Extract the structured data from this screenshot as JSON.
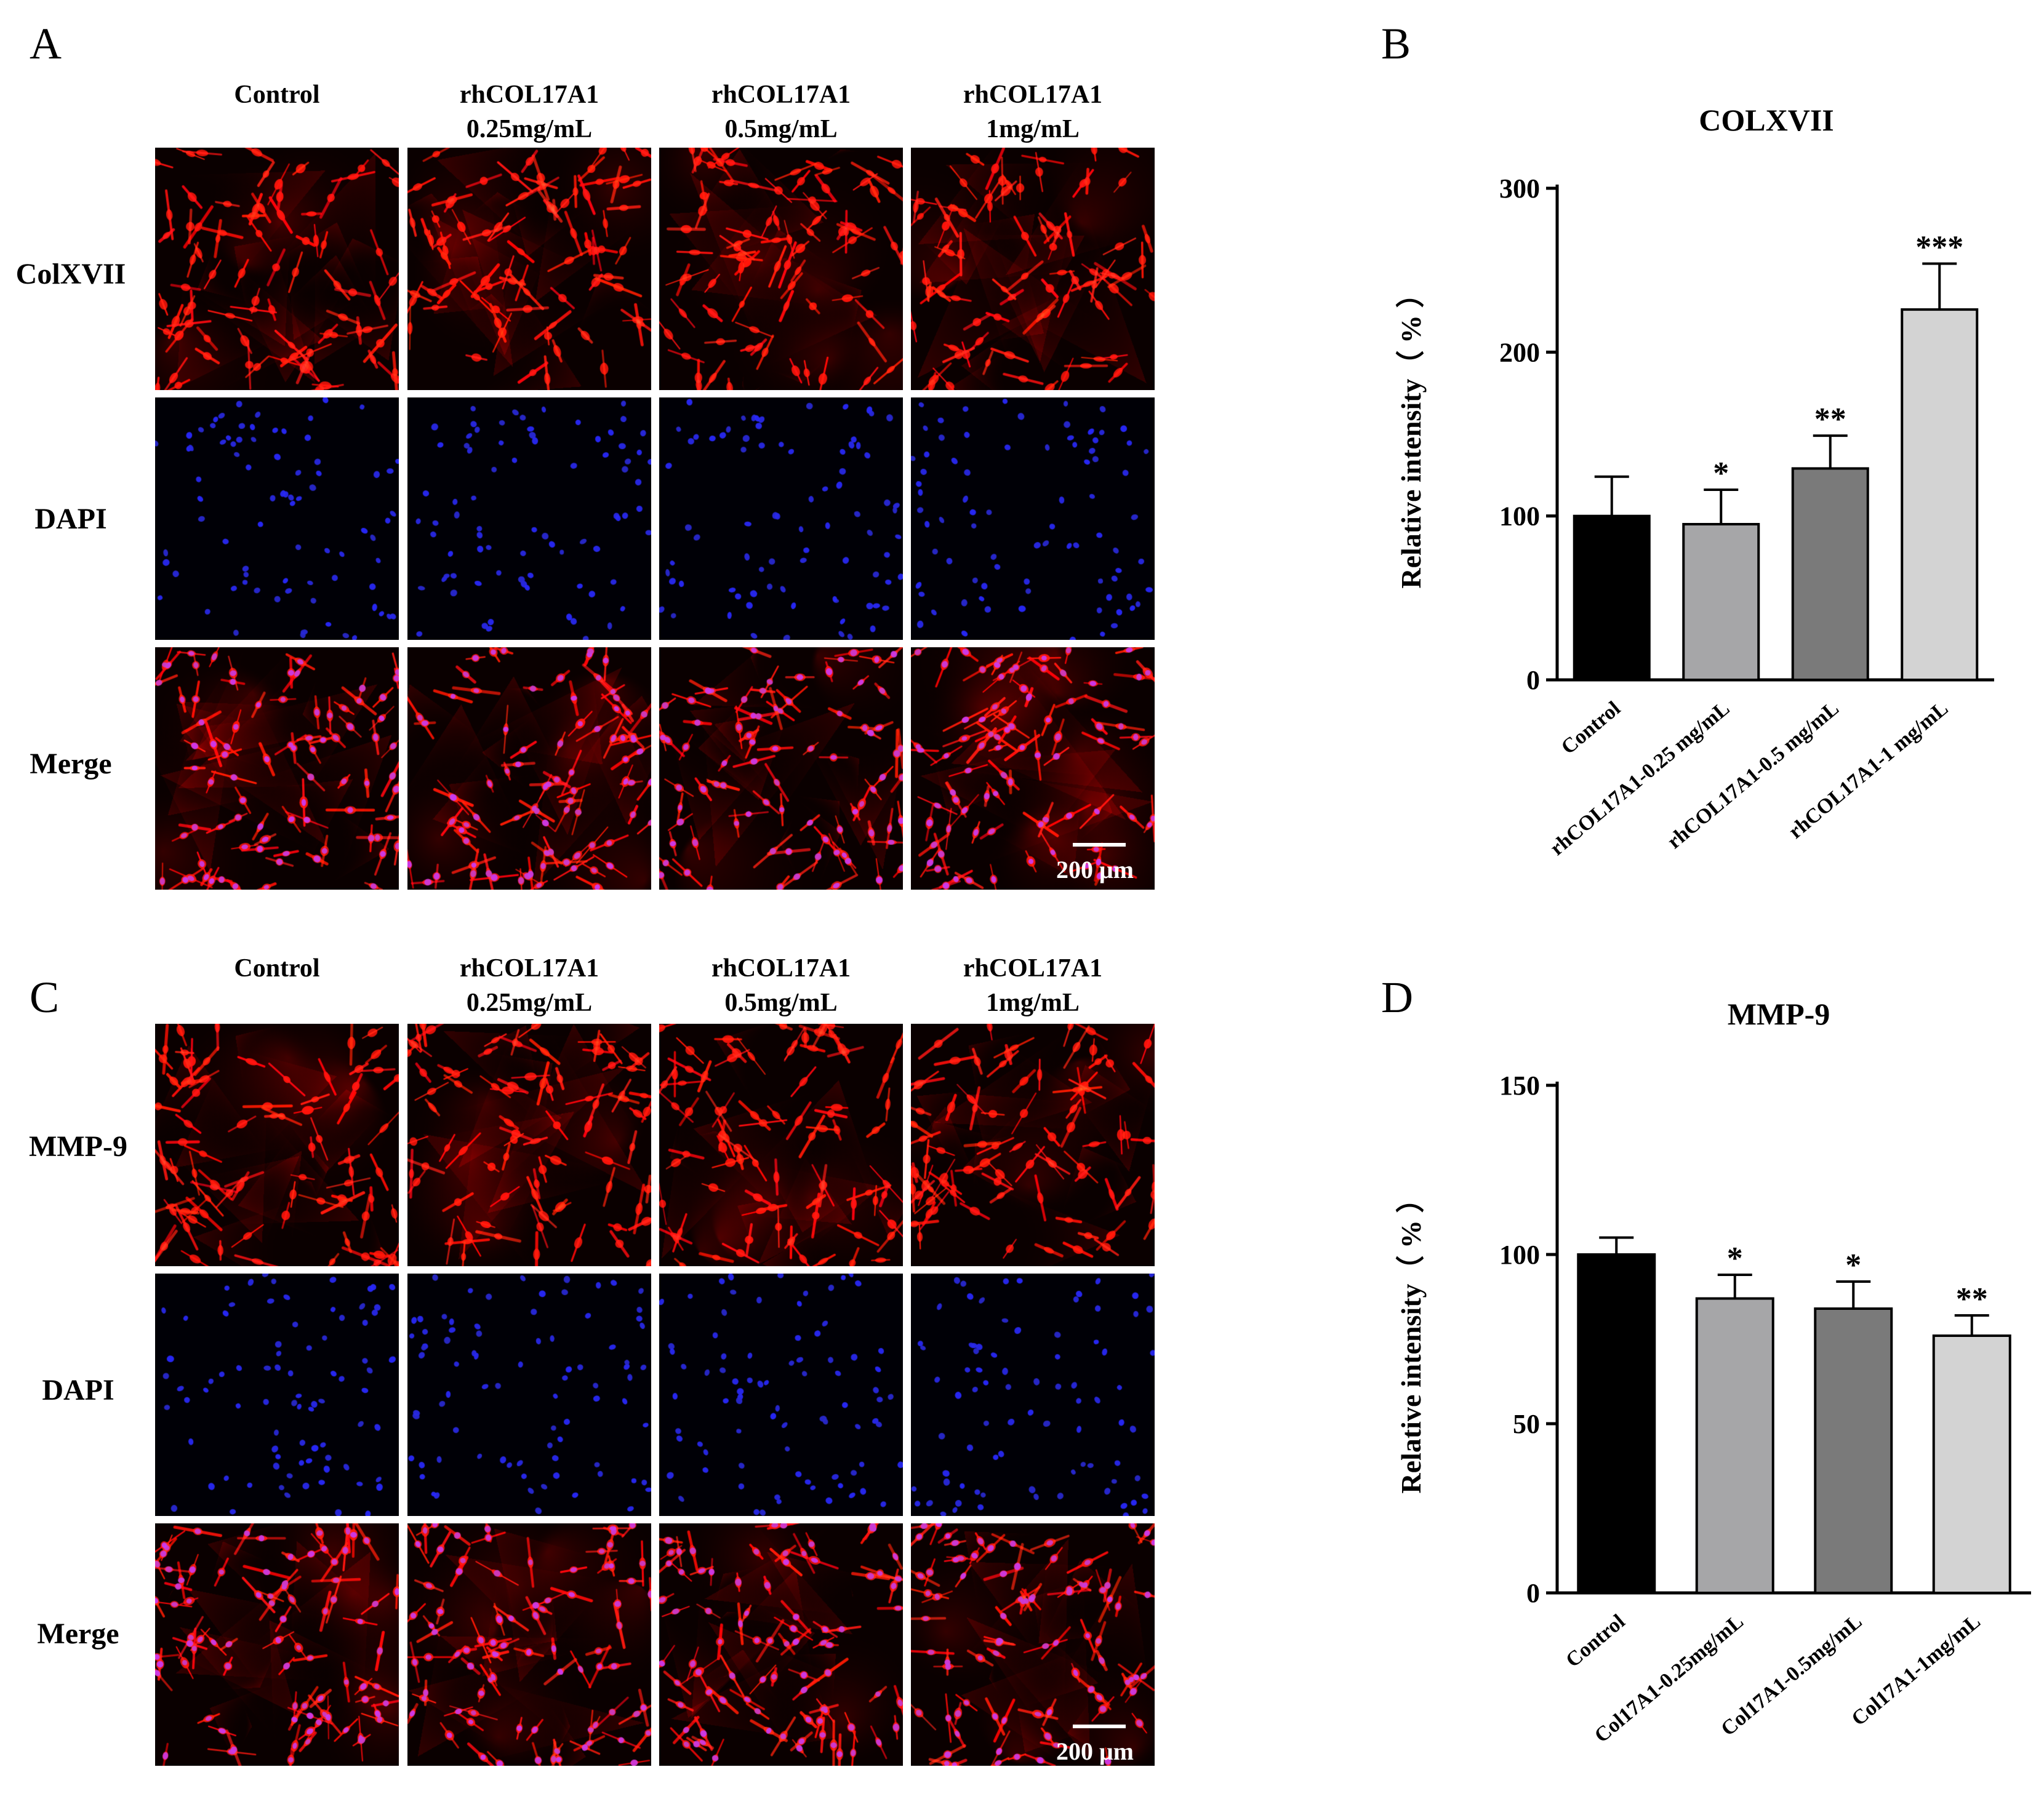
{
  "panels": {
    "A": {
      "letter": "A",
      "columns": [
        {
          "line1": "",
          "line2": "Control"
        },
        {
          "line1": "rhCOL17A1",
          "line2": "0.25mg/mL"
        },
        {
          "line1": "rhCOL17A1",
          "line2": "0.5mg/mL"
        },
        {
          "line1": "rhCOL17A1",
          "line2": "1mg/mL"
        }
      ],
      "rows": [
        "ColXVII",
        "DAPI",
        "Merge"
      ],
      "scale_label": "200 μm"
    },
    "C": {
      "letter": "C",
      "columns": [
        {
          "line1": "",
          "line2": "Control"
        },
        {
          "line1": "rhCOL17A1",
          "line2": "0.25mg/mL"
        },
        {
          "line1": "rhCOL17A1",
          "line2": "0.5mg/mL"
        },
        {
          "line1": "rhCOL17A1",
          "line2": "1mg/mL"
        }
      ],
      "rows": [
        "MMP-9",
        "DAPI",
        "Merge"
      ],
      "scale_label": "200 μm"
    },
    "B": {
      "letter": "B"
    },
    "D": {
      "letter": "D"
    }
  },
  "chart_data": [
    {
      "type": "bar",
      "title": "COLXVII",
      "ylabel": "Relative  intensity（ % ）",
      "categories": [
        "Control",
        "rhCOL17A1-0.25 mg/mL",
        "rhCOL17A1-0.5 mg/mL",
        "rhCOL17A1-1 mg/mL"
      ],
      "values": [
        100,
        95,
        129,
        226
      ],
      "errors": [
        24,
        21,
        20,
        28
      ],
      "significance": [
        "",
        "*",
        "**",
        "***"
      ],
      "bar_colors": [
        "#000000",
        "#a6a6a8",
        "#7a7a7a",
        "#d3d3d3"
      ],
      "ylim": [
        0,
        300
      ],
      "yticks": [
        0,
        100,
        200,
        300
      ],
      "grid": false
    },
    {
      "type": "bar",
      "title": "MMP-9",
      "ylabel": "Relative  intensity（ % ）",
      "categories": [
        "Control",
        "Col17A1-0.25mg/mL",
        "Col17A1-0.5mg/mL",
        "Col17A1-1mg/mL"
      ],
      "values": [
        100,
        87,
        84,
        76
      ],
      "errors": [
        5,
        7,
        8,
        6
      ],
      "significance": [
        "",
        "*",
        "*",
        "**"
      ],
      "bar_colors": [
        "#000000",
        "#a6a6a8",
        "#7a7a7a",
        "#d3d3d3"
      ],
      "ylim": [
        0,
        150
      ],
      "yticks": [
        0,
        50,
        100,
        150
      ],
      "grid": false
    }
  ]
}
